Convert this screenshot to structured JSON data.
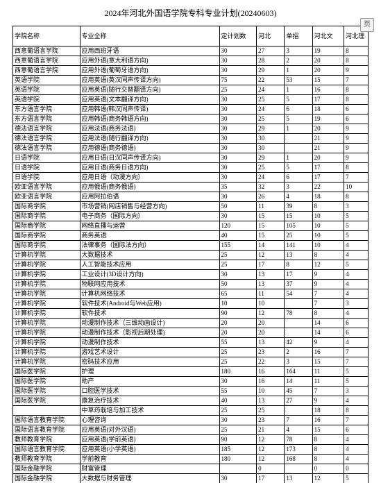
{
  "title": "2024年河北外国语学院专科专业计划(20240603)",
  "icon_label": "页",
  "columns": [
    "学院名称",
    "专业全称",
    "定计划数",
    "河北",
    "单招",
    "河北文",
    "河北理"
  ],
  "rows": [
    [
      "西意葡语言学院",
      "应用西班牙语",
      "30",
      "27",
      "3",
      "19",
      "8"
    ],
    [
      "西意葡语言学院",
      "应用外语(意大利语方向)",
      "30",
      "28",
      "2",
      "20",
      "8"
    ],
    [
      "西意葡语言学院",
      "应用外语(葡萄牙语方向)",
      "30",
      "29",
      "1",
      "20",
      "9"
    ],
    [
      "英语学院",
      "应用英语(英汉同声传译方向)",
      "75",
      "22",
      "53",
      "15",
      "7"
    ],
    [
      "英语学院",
      "应用英语(随行交替翻译方向)",
      "25",
      "24",
      "1",
      "16",
      "8"
    ],
    [
      "英语学院",
      "应用英语(文本翻译方向)",
      "30",
      "25",
      "5",
      "17",
      "8"
    ],
    [
      "东方语言学院",
      "应用韩语(韩汉同声传译)",
      "30",
      "24",
      "6",
      "18",
      "6"
    ],
    [
      "东方语言学院",
      "应用韩语(商务韩语方向)",
      "30",
      "25",
      "5",
      "19",
      "6"
    ],
    [
      "德法语言学院",
      "应用法语(商务法语)",
      "30",
      "29",
      "1",
      "20",
      "9"
    ],
    [
      "德法语言学院",
      "应用法语(随行翻译方向)",
      "30",
      "30",
      "",
      "21",
      "9"
    ],
    [
      "德法语言学院",
      "应用德语(商务德语)",
      "30",
      "30",
      "",
      "21",
      "9"
    ],
    [
      "日语学院",
      "应用日语(日汉同声传译方向)",
      "30",
      "29",
      "1",
      "20",
      "9"
    ],
    [
      "日语学院",
      "应用日语(商务日语方向)",
      "30",
      "25",
      "5",
      "17",
      "8"
    ],
    [
      "日语学院",
      "应用日语（动漫方向）",
      "30",
      "24",
      "6",
      "17",
      "7"
    ],
    [
      "欧亚语言学院",
      "应用俄语(商务俄语)",
      "35",
      "32",
      "3",
      "22",
      "10"
    ],
    [
      "欧亚语言学院",
      "应用阿拉伯语",
      "30",
      "26",
      "4",
      "18",
      "8"
    ],
    [
      "国际商学院",
      "市场营销(网店销售与经营方向)",
      "50",
      "11",
      "39",
      "8",
      "3"
    ],
    [
      "国际商学院",
      "电子商务（国际方向）",
      "30",
      "15",
      "15",
      "10",
      "5"
    ],
    [
      "国际商学院",
      "网络直播与运营",
      "120",
      "15",
      "105",
      "10",
      "5"
    ],
    [
      "国际商学院",
      "商务英语",
      "40",
      "15",
      "25",
      "10",
      "5"
    ],
    [
      "国际商学院",
      "法律事务（国际法方向）",
      "155",
      "14",
      "141",
      "10",
      "4"
    ],
    [
      "计算机学院",
      "大数据技术",
      "25",
      "12",
      "13",
      "8",
      "4"
    ],
    [
      "计算机学院",
      "人工智能技术应用",
      "25",
      "17",
      "8",
      "12",
      "5"
    ],
    [
      "计算机学院",
      "工业设计(3D设计方向)",
      "30",
      "13",
      "17",
      "9",
      "4"
    ],
    [
      "计算机学院",
      "物联网应用技术",
      "50",
      "13",
      "37",
      "9",
      "4"
    ],
    [
      "计算机学院",
      "计算机网络技术",
      "65",
      "11",
      "54",
      "7",
      "4"
    ],
    [
      "计算机学院",
      "软件技术(Android与Web应用)",
      "10",
      "10",
      "",
      "7",
      "3"
    ],
    [
      "计算机学院",
      "软件技术",
      "90",
      "12",
      "78",
      "8",
      "4"
    ],
    [
      "计算机学院",
      "动漫制作技术（三维动画设计)",
      "20",
      "20",
      "",
      "14",
      "6"
    ],
    [
      "计算机学院",
      "动漫制作技术（影视后期处理)",
      "20",
      "20",
      "",
      "14",
      "6"
    ],
    [
      "计算机学院",
      "动漫制作技术",
      "55",
      "13",
      "42",
      "9",
      "4"
    ],
    [
      "计算机学院",
      "游戏艺术设计",
      "25",
      "23",
      "2",
      "16",
      "7"
    ],
    [
      "计算机学院",
      "密码技术应用",
      "25",
      "22",
      "3",
      "15",
      "7"
    ],
    [
      "国际医学院",
      "护理",
      "180",
      "16",
      "164",
      "11",
      "5"
    ],
    [
      "国际医学院",
      "助产",
      "30",
      "16",
      "14",
      "11",
      "5"
    ],
    [
      "国际医学院",
      "口腔医学技术",
      "55",
      "10",
      "45",
      "7",
      "3"
    ],
    [
      "国际医学院",
      "康复治疗技术",
      "40",
      "13",
      "27",
      "9",
      "4"
    ],
    [
      "",
      "中草药栽培与加工技术",
      "25",
      "25",
      "",
      "18",
      "8"
    ],
    [
      "国际语言教育学院",
      "心理咨询",
      "30",
      "23",
      "7",
      "16",
      "7"
    ],
    [
      "国际语言教育学院",
      "应用英语(对外汉语)",
      "25",
      "21",
      "4",
      "15",
      "6"
    ],
    [
      "教师教育学院",
      "应用英语(学前英语)",
      "90",
      "12",
      "78",
      "8",
      "4"
    ],
    [
      "国际语言教育学院",
      "应用英语(小学英语)",
      "185",
      "12",
      "173",
      "8",
      "4"
    ],
    [
      "教师教育学院",
      "学前教育",
      "180",
      "12",
      "168",
      "8",
      "4"
    ],
    [
      "国际金融学院",
      "财富管理",
      "",
      "0",
      "",
      "0",
      "0"
    ],
    [
      "国际金融学院",
      "大数据与财务管理",
      "30",
      "17",
      "13",
      "12",
      "5"
    ],
    [
      "国际金融学院",
      "大数据与会计(注册会计师方向)",
      "60",
      "18",
      "42",
      "13",
      "5"
    ]
  ]
}
